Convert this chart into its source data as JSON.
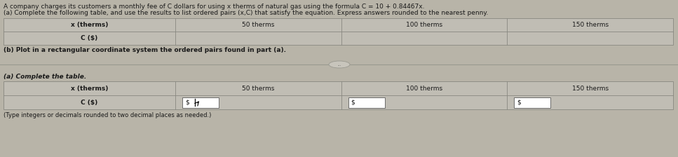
{
  "title_line1": "A company charges its customers a monthly fee of C dollars for using x therms of natural gas using the formula C = 10 + 0.84467x.",
  "part_a_label": "(a) Complete the following table, and use the results to list ordered pairs (x,C) that satisfy the equation. Express answers rounded to the nearest penny.",
  "table1_headers": [
    "x (therms)",
    "50 therms",
    "100 therms",
    "150 therms"
  ],
  "table1_row2": [
    "C ($)",
    "",
    "",
    ""
  ],
  "part_b_label": "(b) Plot in a rectangular coordinate system the ordered pairs found in part (a).",
  "divider_button_text": "...",
  "part_a2_label": "(a) Complete the table.",
  "table2_headers": [
    "x (therms)",
    "50 therms",
    "100 therms",
    "150 therms"
  ],
  "table2_row2_label": "C ($)",
  "footer_note": "(Type integers or decimals rounded to two decimal places as needed.)",
  "bg_color": "#b8b4a8",
  "table_bg": "#c0bdb4",
  "text_color": "#1a1a1a",
  "font_size": 6.5,
  "white": "#ffffff",
  "border_color": "#888880",
  "input_border": "#5a5a5a"
}
